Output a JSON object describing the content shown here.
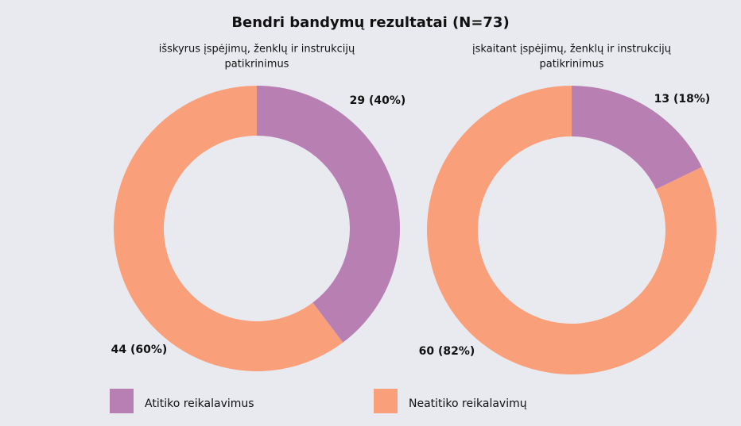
{
  "title": "Bendri bandymų rezultatai (N=73)",
  "chart_data": [
    {
      "type": "donut",
      "subtitle": [
        "išskyrus įspėjimų, ženklų ir instrukcijų",
        "patikrinimus"
      ],
      "categories": [
        "Atitiko reikalavimus",
        "Neatitiko reikalavimų"
      ],
      "values": [
        29,
        44
      ],
      "value_labels": [
        "29 (40%)",
        "44 (60%)"
      ],
      "colors": [
        "#b87fb3",
        "#f99f7a"
      ]
    },
    {
      "type": "donut",
      "subtitle": [
        "įskaitant įspėjimų, ženklų ir instrukcijų",
        "patikrinimus"
      ],
      "categories": [
        "Atitiko reikalavimus",
        "Neatitiko reikalavimų"
      ],
      "values": [
        13,
        60
      ],
      "value_labels": [
        "13 (18%)",
        "60 (82%)"
      ],
      "colors": [
        "#b87fb3",
        "#f99f7a"
      ]
    }
  ]
}
